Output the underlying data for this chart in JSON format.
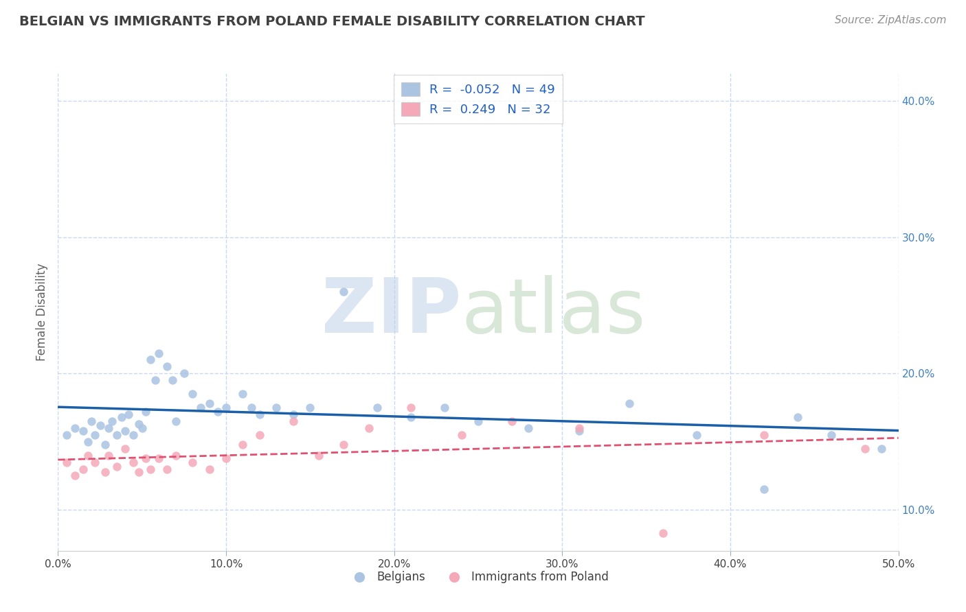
{
  "title": "BELGIAN VS IMMIGRANTS FROM POLAND FEMALE DISABILITY CORRELATION CHART",
  "source": "Source: ZipAtlas.com",
  "ylabel": "Female Disability",
  "xlim": [
    0.0,
    0.5
  ],
  "ylim": [
    0.07,
    0.42
  ],
  "xticks": [
    0.0,
    0.1,
    0.2,
    0.3,
    0.4,
    0.5
  ],
  "xtick_labels": [
    "0.0%",
    "10.0%",
    "20.0%",
    "30.0%",
    "40.0%",
    "50.0%"
  ],
  "yticks": [
    0.1,
    0.2,
    0.3,
    0.4
  ],
  "ytick_labels": [
    "10.0%",
    "20.0%",
    "30.0%",
    "40.0%"
  ],
  "belgian_R": -0.052,
  "belgian_N": 49,
  "poland_R": 0.249,
  "poland_N": 32,
  "belgian_color": "#aac4e2",
  "poland_color": "#f4a8b8",
  "belgian_line_color": "#1a5fa8",
  "poland_line_color": "#e05070",
  "background_color": "#ffffff",
  "grid_color": "#c8d8f0",
  "title_color": "#404040",
  "legend_text_color": "#2060c0",
  "belgian_x": [
    0.005,
    0.01,
    0.015,
    0.018,
    0.02,
    0.022,
    0.025,
    0.028,
    0.03,
    0.032,
    0.035,
    0.038,
    0.04,
    0.042,
    0.045,
    0.048,
    0.05,
    0.052,
    0.055,
    0.058,
    0.06,
    0.065,
    0.068,
    0.07,
    0.075,
    0.08,
    0.085,
    0.09,
    0.095,
    0.1,
    0.11,
    0.115,
    0.12,
    0.13,
    0.14,
    0.15,
    0.17,
    0.19,
    0.21,
    0.23,
    0.25,
    0.28,
    0.31,
    0.34,
    0.38,
    0.42,
    0.44,
    0.46,
    0.49
  ],
  "belgian_y": [
    0.155,
    0.16,
    0.158,
    0.15,
    0.165,
    0.155,
    0.162,
    0.148,
    0.16,
    0.165,
    0.155,
    0.168,
    0.158,
    0.17,
    0.155,
    0.163,
    0.16,
    0.172,
    0.21,
    0.195,
    0.215,
    0.205,
    0.195,
    0.165,
    0.2,
    0.185,
    0.175,
    0.178,
    0.172,
    0.175,
    0.185,
    0.175,
    0.17,
    0.175,
    0.17,
    0.175,
    0.26,
    0.175,
    0.168,
    0.175,
    0.165,
    0.16,
    0.158,
    0.178,
    0.155,
    0.115,
    0.168,
    0.155,
    0.145
  ],
  "poland_x": [
    0.005,
    0.01,
    0.015,
    0.018,
    0.022,
    0.028,
    0.03,
    0.035,
    0.04,
    0.045,
    0.048,
    0.052,
    0.055,
    0.06,
    0.065,
    0.07,
    0.08,
    0.09,
    0.1,
    0.11,
    0.12,
    0.14,
    0.155,
    0.17,
    0.185,
    0.21,
    0.24,
    0.27,
    0.31,
    0.36,
    0.42,
    0.48
  ],
  "poland_y": [
    0.135,
    0.125,
    0.13,
    0.14,
    0.135,
    0.128,
    0.14,
    0.132,
    0.145,
    0.135,
    0.128,
    0.138,
    0.13,
    0.138,
    0.13,
    0.14,
    0.135,
    0.13,
    0.138,
    0.148,
    0.155,
    0.165,
    0.14,
    0.148,
    0.16,
    0.175,
    0.155,
    0.165,
    0.16,
    0.083,
    0.155,
    0.145
  ]
}
